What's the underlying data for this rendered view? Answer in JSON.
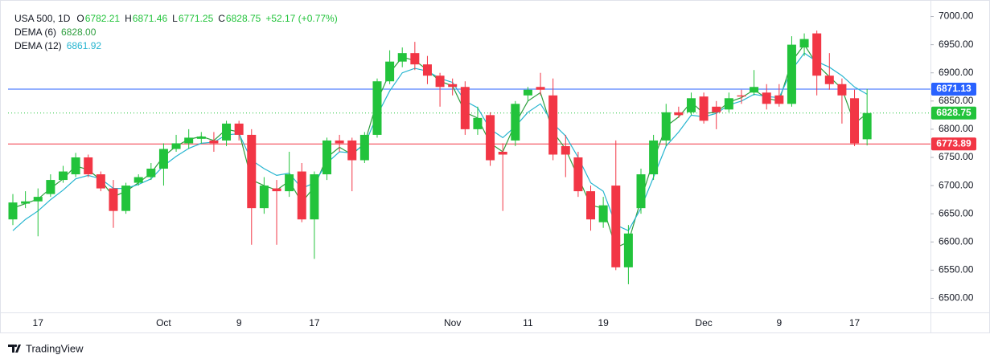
{
  "chart_data": {
    "type": "candlestick",
    "title": "USA 500, 1D",
    "ohlc_labels": [
      "O",
      "H",
      "L",
      "C"
    ],
    "change": "+52.17 (+0.77%)",
    "up_color": "#22c33b",
    "down_color": "#f23645",
    "categories": [
      null,
      null,
      "17",
      null,
      null,
      null,
      null,
      null,
      null,
      null,
      null,
      null,
      "Oct",
      null,
      null,
      null,
      null,
      null,
      "9",
      null,
      null,
      null,
      null,
      null,
      "17",
      null,
      null,
      null,
      null,
      null,
      null,
      null,
      null,
      null,
      null,
      "Nov",
      null,
      null,
      null,
      null,
      null,
      "11",
      null,
      null,
      null,
      null,
      null,
      "19",
      null,
      null,
      null,
      null,
      null,
      null,
      null,
      "Dec",
      null,
      null,
      null,
      null,
      null,
      "9",
      null,
      null,
      null,
      null,
      null,
      "17",
      null
    ],
    "open": [
      6640,
      6668,
      6672,
      6685,
      6710,
      6720,
      6750,
      6720,
      6695,
      6655,
      6705,
      6715,
      6730,
      6765,
      6775,
      6783,
      6780,
      6780,
      6810,
      6790,
      6660,
      6695,
      6690,
      6725,
      6640,
      6720,
      6780,
      6780,
      6745,
      6790,
      6885,
      6920,
      6935,
      6915,
      6895,
      6880,
      6875,
      6800,
      6825,
      6760,
      6780,
      6860,
      6875,
      6860,
      6770,
      6750,
      6690,
      6635,
      6700,
      6555,
      6660,
      6720,
      6780,
      6830,
      6830,
      6858,
      6840,
      6835,
      6860,
      6865,
      6865,
      6860,
      6845,
      6945,
      6970,
      6895,
      6880,
      6855,
      6782.21
    ],
    "high": [
      6685,
      6690,
      6695,
      6720,
      6735,
      6758,
      6755,
      6725,
      6710,
      6705,
      6720,
      6740,
      6775,
      6790,
      6800,
      6795,
      6795,
      6815,
      6815,
      6800,
      6715,
      6710,
      6760,
      6740,
      6725,
      6785,
      6790,
      6785,
      6795,
      6890,
      6940,
      6945,
      6955,
      6930,
      6900,
      6890,
      6885,
      6840,
      6830,
      6775,
      6850,
      6875,
      6900,
      6890,
      6790,
      6760,
      6700,
      6680,
      6780,
      6630,
      6730,
      6790,
      6845,
      6840,
      6865,
      6865,
      6850,
      6865,
      6870,
      6905,
      6880,
      6880,
      6965,
      6970,
      6975,
      6935,
      6890,
      6870,
      6871.46
    ],
    "low": [
      6630,
      6660,
      6610,
      6680,
      6705,
      6715,
      6715,
      6690,
      6625,
      6650,
      6700,
      6710,
      6700,
      6760,
      6765,
      6775,
      6760,
      6770,
      6780,
      6595,
      6650,
      6595,
      6680,
      6635,
      6570,
      6710,
      6760,
      6690,
      6740,
      6785,
      6880,
      6910,
      6905,
      6880,
      6840,
      6860,
      6790,
      6790,
      6735,
      6655,
      6770,
      6850,
      6860,
      6745,
      6715,
      6680,
      6620,
      6625,
      6550,
      6525,
      6650,
      6710,
      6770,
      6820,
      6825,
      6810,
      6800,
      6830,
      6845,
      6860,
      6835,
      6840,
      6840,
      6930,
      6860,
      6870,
      6810,
      6770,
      6771.25
    ],
    "close": [
      6670,
      6672,
      6680,
      6710,
      6725,
      6750,
      6720,
      6695,
      6655,
      6700,
      6715,
      6730,
      6765,
      6775,
      6785,
      6787,
      6775,
      6810,
      6790,
      6660,
      6700,
      6690,
      6720,
      6640,
      6720,
      6780,
      6775,
      6745,
      6790,
      6885,
      6920,
      6935,
      6915,
      6895,
      6875,
      6875,
      6800,
      6820,
      6745,
      6755,
      6845,
      6870,
      6870,
      6755,
      6755,
      6690,
      6640,
      6665,
      6555,
      6615,
      6720,
      6780,
      6830,
      6825,
      6855,
      6815,
      6830,
      6855,
      6858,
      6875,
      6845,
      6845,
      6950,
      6960,
      6895,
      6880,
      6860,
      6775,
      6828.75
    ],
    "series": [
      {
        "name": "DEMA (6)",
        "last_label": "6828.00",
        "color": "#2e9e3e",
        "values": [
          6660,
          6668,
          6676,
          6695,
          6712,
          6735,
          6728,
          6710,
          6680,
          6690,
          6705,
          6722,
          6752,
          6770,
          6782,
          6787,
          6780,
          6800,
          6795,
          6710,
          6700,
          6692,
          6708,
          6670,
          6698,
          6750,
          6768,
          6755,
          6775,
          6850,
          6900,
          6928,
          6922,
          6905,
          6885,
          6877,
          6830,
          6820,
          6775,
          6760,
          6810,
          6850,
          6865,
          6795,
          6765,
          6715,
          6665,
          6660,
          6590,
          6600,
          6675,
          6745,
          6805,
          6822,
          6848,
          6828,
          6830,
          6848,
          6856,
          6870,
          6855,
          6850,
          6920,
          6950,
          6915,
          6893,
          6872,
          6810,
          6828
        ]
      },
      {
        "name": "DEMA (12)",
        "last_label": "6861.92",
        "color": "#26b5d0",
        "values": [
          6620,
          6640,
          6655,
          6675,
          6692,
          6712,
          6718,
          6712,
          6695,
          6695,
          6702,
          6712,
          6735,
          6752,
          6766,
          6775,
          6777,
          6790,
          6792,
          6745,
          6730,
          6718,
          6722,
          6695,
          6705,
          6740,
          6760,
          6758,
          6772,
          6825,
          6868,
          6900,
          6908,
          6903,
          6890,
          6883,
          6850,
          6838,
          6800,
          6785,
          6805,
          6830,
          6845,
          6810,
          6788,
          6750,
          6705,
          6690,
          6630,
          6620,
          6660,
          6715,
          6770,
          6795,
          6825,
          6822,
          6828,
          6843,
          6850,
          6862,
          6858,
          6856,
          6905,
          6935,
          6920,
          6910,
          6895,
          6875,
          6861.92
        ]
      }
    ],
    "price_lines": [
      {
        "value": 6871.13,
        "color": "#2962ff"
      },
      {
        "value": 6773.89,
        "color": "#f23645"
      }
    ],
    "ylim": [
      6475,
      7015
    ],
    "yticks": [
      {
        "value": 6500,
        "label": "6500.00"
      },
      {
        "value": 6550,
        "label": "6550.00"
      },
      {
        "value": 6600,
        "label": "6600.00"
      },
      {
        "value": 6650,
        "label": "6650.00"
      },
      {
        "value": 6700,
        "label": "6700.00"
      },
      {
        "value": 6750,
        "label": "6750.00"
      },
      {
        "value": 6800,
        "label": "6800.00"
      },
      {
        "value": 6850,
        "label": "6850.00"
      },
      {
        "value": 6900,
        "label": "6900.00"
      },
      {
        "value": 6950,
        "label": "6950.00"
      },
      {
        "value": 7000,
        "label": "7000.00"
      }
    ],
    "footer": "TradingView"
  }
}
